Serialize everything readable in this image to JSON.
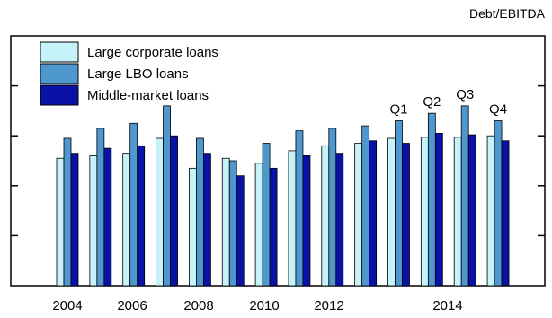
{
  "chart_data": {
    "type": "bar",
    "unit_label": "Debt/EBITDA",
    "x_tick_labels": [
      "2004",
      "2006",
      "2008",
      "2010",
      "2012",
      "2014"
    ],
    "categories": [
      "2004",
      "2005",
      "2006",
      "2007",
      "2008",
      "2009",
      "2010",
      "2011",
      "2012",
      "2013",
      "2014 Q1",
      "2014 Q2",
      "2014 Q3",
      "2014 Q4"
    ],
    "series": [
      {
        "name": "Large corporate loans",
        "color": "#c6f2fa",
        "values": [
          2.55,
          2.6,
          2.65,
          2.95,
          2.35,
          2.55,
          2.45,
          2.7,
          2.8,
          2.85,
          2.95,
          2.97,
          2.97,
          3.0
        ]
      },
      {
        "name": "Large LBO loans",
        "color": "#4f97cf",
        "values": [
          2.95,
          3.15,
          3.25,
          3.6,
          2.95,
          2.5,
          2.85,
          3.1,
          3.15,
          3.2,
          3.3,
          3.45,
          3.6,
          3.3
        ]
      },
      {
        "name": "Middle-market loans",
        "color": "#0a12a6",
        "values": [
          2.65,
          2.75,
          2.8,
          3.0,
          2.65,
          2.2,
          2.35,
          2.6,
          2.65,
          2.9,
          2.85,
          3.05,
          3.02,
          2.9
        ]
      }
    ],
    "annotations": [
      "Q1",
      "Q2",
      "Q3",
      "Q4"
    ],
    "ylim": [
      0,
      5
    ],
    "y_ticks": [
      0,
      1,
      2,
      3,
      4,
      5
    ],
    "y_tick_labels_shown": false,
    "grid": false,
    "legend_position": "top-left"
  }
}
